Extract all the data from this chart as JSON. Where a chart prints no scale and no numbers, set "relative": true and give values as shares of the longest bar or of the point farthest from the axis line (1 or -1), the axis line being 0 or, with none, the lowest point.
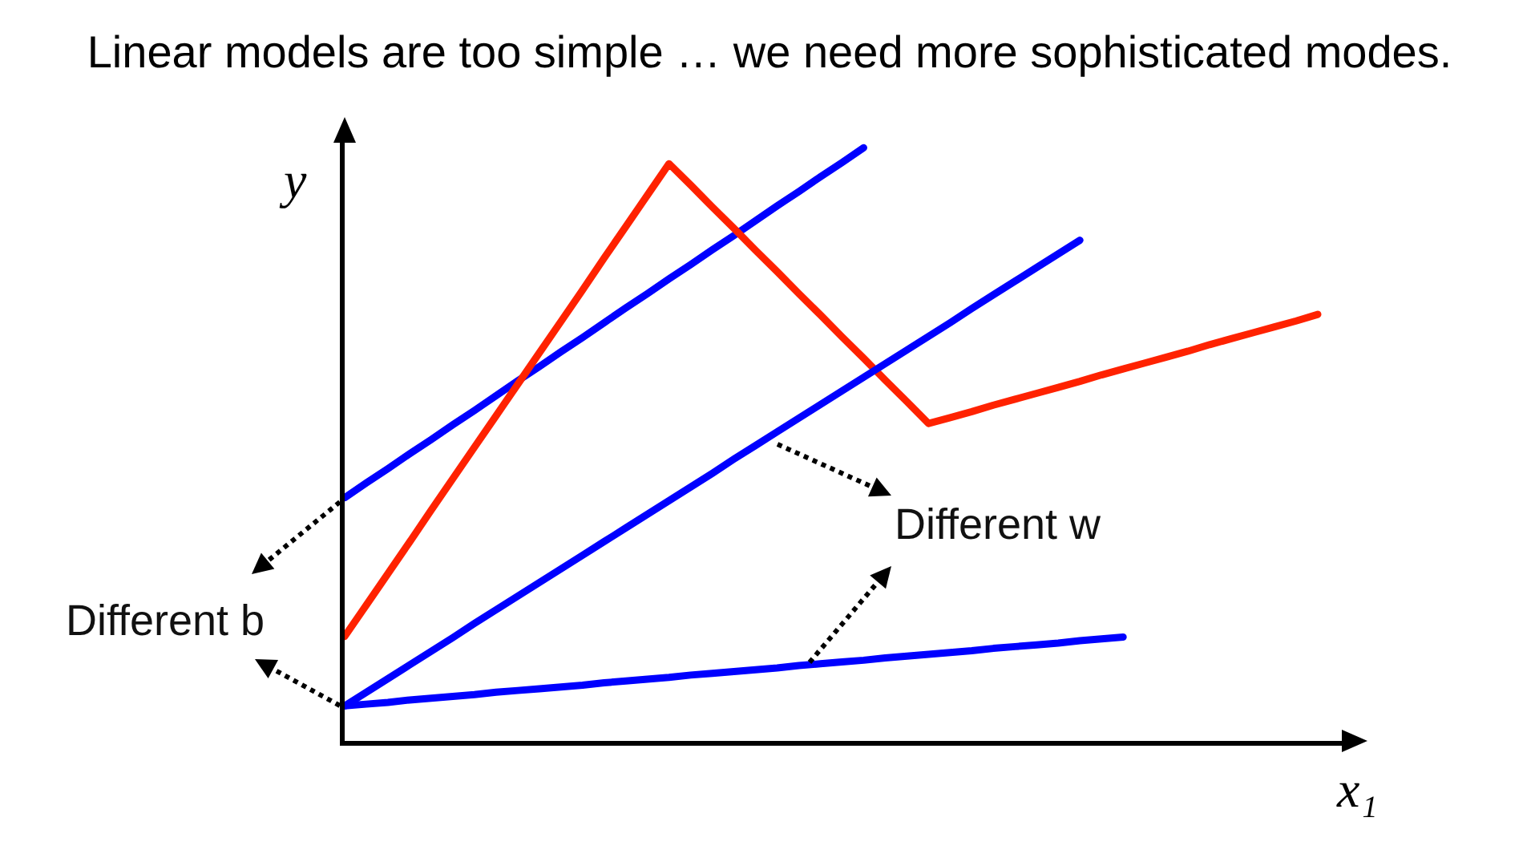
{
  "chart_data": {
    "type": "line",
    "relative": true,
    "title": "Linear models are too simple … we need more sophisticated modes.",
    "xlabel": "x₁",
    "ylabel": "y",
    "annotations": [
      "Different b",
      "Different w"
    ],
    "categories": [
      null,
      null,
      null,
      null,
      null,
      null,
      null,
      null,
      null,
      null,
      null,
      null,
      null,
      null,
      null,
      null,
      null,
      null,
      null,
      null,
      null,
      null,
      null,
      null,
      null,
      null,
      null,
      null,
      null,
      null,
      null,
      null,
      null,
      null,
      null,
      null,
      null,
      null,
      null,
      null,
      null,
      null,
      null,
      null,
      null,
      null
    ],
    "series": [
      {
        "color": "#0000ff",
        "values": [
          0.41,
          0.435,
          0.459,
          0.484,
          0.508,
          0.533,
          0.557,
          0.582,
          0.607,
          0.631,
          0.656,
          0.68,
          0.705,
          0.73,
          0.754,
          0.779,
          0.803,
          0.828,
          0.852,
          0.877,
          0.902,
          0.926,
          0.951,
          0.975,
          1,
          null,
          null,
          null,
          null,
          null,
          null,
          null,
          null,
          null,
          null,
          null,
          null,
          null,
          null,
          null,
          null,
          null,
          null,
          null,
          null,
          null
        ]
      },
      {
        "color": "#ff2200",
        "values": [
          0.176,
          0.229,
          0.282,
          0.335,
          0.389,
          0.442,
          0.495,
          0.548,
          0.601,
          0.654,
          0.707,
          0.76,
          0.814,
          0.867,
          0.92,
          0.973,
          0.937,
          0.9,
          0.864,
          0.827,
          0.791,
          0.754,
          0.718,
          0.681,
          0.645,
          0.608,
          0.572,
          0.535,
          0.545,
          0.555,
          0.566,
          0.576,
          0.586,
          0.596,
          0.606,
          0.617,
          0.627,
          0.637,
          0.647,
          0.657,
          0.668,
          0.678,
          0.688,
          0.698,
          0.708,
          0.719
        ]
      },
      {
        "color": "#0000ff",
        "values": [
          0.059,
          0.082,
          0.105,
          0.128,
          0.151,
          0.174,
          0.198,
          0.221,
          0.244,
          0.267,
          0.29,
          0.313,
          0.336,
          0.359,
          0.382,
          0.405,
          0.428,
          0.451,
          0.475,
          0.498,
          0.521,
          0.544,
          0.567,
          0.59,
          0.613,
          0.636,
          0.659,
          0.682,
          0.705,
          0.729,
          0.752,
          0.775,
          0.798,
          0.821,
          0.844,
          null,
          null,
          null,
          null,
          null,
          null,
          null,
          null,
          null,
          null,
          null
        ]
      },
      {
        "color": "#0000ff",
        "values": [
          0.059,
          0.062,
          0.065,
          0.069,
          0.072,
          0.075,
          0.078,
          0.082,
          0.085,
          0.088,
          0.091,
          0.094,
          0.098,
          0.101,
          0.104,
          0.107,
          0.111,
          0.114,
          0.117,
          0.12,
          0.123,
          0.127,
          0.13,
          0.133,
          0.136,
          0.14,
          0.143,
          0.146,
          0.149,
          0.152,
          0.156,
          0.159,
          0.162,
          0.165,
          0.169,
          0.172,
          0.175,
          null,
          null,
          null,
          null,
          null,
          null,
          null,
          null,
          null
        ]
      }
    ]
  }
}
